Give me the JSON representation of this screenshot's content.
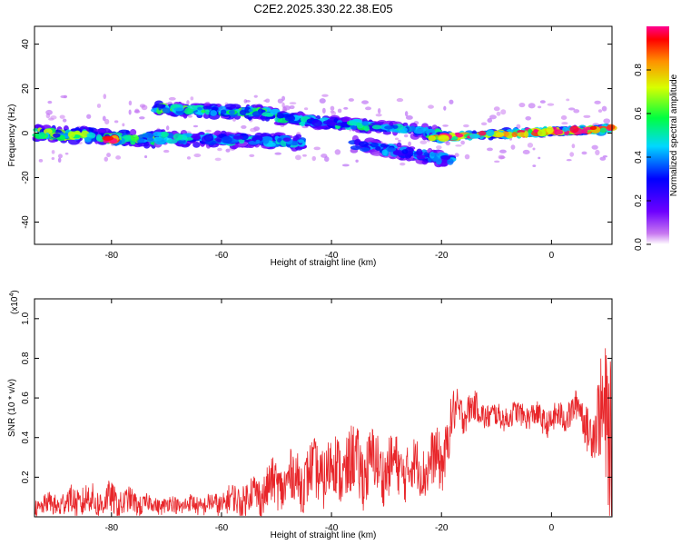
{
  "title": "C2E2.2025.330.22.38.E05",
  "chart_data": [
    {
      "type": "heatmap",
      "name": "spectrogram",
      "xlabel": "Height of straight line (km)",
      "ylabel": "Frequency (Hz)",
      "xlim": [
        -94,
        11
      ],
      "ylim": [
        -50,
        48
      ],
      "xticks": [
        "-80",
        "-60",
        "-40",
        "-20",
        "0"
      ],
      "xtick_values": [
        -80,
        -60,
        -40,
        -20,
        0
      ],
      "yticks": [
        "40",
        "20",
        "0",
        "-20",
        "-40"
      ],
      "ytick_values": [
        40,
        20,
        0,
        -20,
        -40
      ],
      "colorbar": {
        "label": "Normalized spectral amplitude",
        "ticks": [
          "0.0",
          "0.2",
          "0.4",
          "0.6",
          "0.8"
        ],
        "tick_values": [
          0.0,
          0.2,
          0.4,
          0.6,
          0.8
        ],
        "range": [
          0,
          1
        ]
      },
      "bands": [
        {
          "x0": -94,
          "x1": -72,
          "f0": 0,
          "f1": -3,
          "width": 6,
          "amp": 0.55
        },
        {
          "x0": -81,
          "x1": -79,
          "f0": -3,
          "f1": -3,
          "width": 3,
          "amp": 0.9
        },
        {
          "x0": -72,
          "x1": -50,
          "f0": 11,
          "f1": 9,
          "width": 5,
          "amp": 0.5
        },
        {
          "x0": -72,
          "x1": -45,
          "f0": -2,
          "f1": -4,
          "width": 6,
          "amp": 0.4
        },
        {
          "x0": -50,
          "x1": -20,
          "f0": 7,
          "f1": 0,
          "width": 5,
          "amp": 0.45
        },
        {
          "x0": -36,
          "x1": -18,
          "f0": -5,
          "f1": -12,
          "width": 6,
          "amp": 0.35
        },
        {
          "x0": -22,
          "x1": 11,
          "f0": -2,
          "f1": 2,
          "width": 3,
          "amp": 0.85
        }
      ]
    },
    {
      "type": "line",
      "name": "snr",
      "xlabel": "Height of straight line (km)",
      "ylabel": "SNR (10 * v/v)",
      "yscale_label": "(x10",
      "yscale_exp": "4",
      "xlim": [
        -94,
        11
      ],
      "ylim": [
        0,
        1.1
      ],
      "xticks": [
        "-80",
        "-60",
        "-40",
        "-20",
        "0"
      ],
      "xtick_values": [
        -80,
        -60,
        -40,
        -20,
        0
      ],
      "yticks": [
        "0.2",
        "0.4",
        "0.6",
        "0.8",
        "1.0"
      ],
      "ytick_values": [
        0.2,
        0.4,
        0.6,
        0.8,
        1.0
      ],
      "color": "#e8262a",
      "envelope": {
        "x": [
          -94,
          -86,
          -80,
          -72,
          -62,
          -55,
          -50,
          -45,
          -40,
          -35,
          -30,
          -25,
          -20,
          -18,
          -15,
          -10,
          -5,
          0,
          5,
          8,
          10,
          11
        ],
        "mean": [
          0.05,
          0.08,
          0.08,
          0.06,
          0.06,
          0.1,
          0.16,
          0.2,
          0.24,
          0.26,
          0.25,
          0.24,
          0.28,
          0.5,
          0.55,
          0.5,
          0.52,
          0.48,
          0.55,
          0.4,
          0.6,
          0.4
        ],
        "spread": [
          0.04,
          0.08,
          0.08,
          0.04,
          0.05,
          0.09,
          0.12,
          0.14,
          0.16,
          0.18,
          0.15,
          0.13,
          0.15,
          0.12,
          0.08,
          0.06,
          0.06,
          0.07,
          0.08,
          0.15,
          0.4,
          0.4
        ]
      }
    }
  ]
}
